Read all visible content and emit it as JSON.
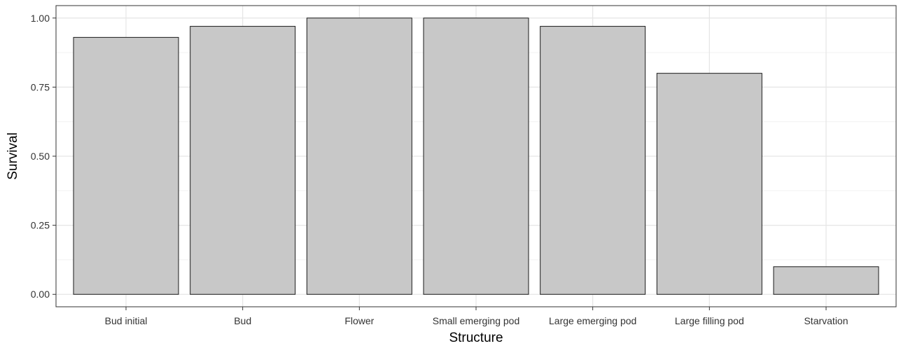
{
  "chart_data": {
    "type": "bar",
    "title": "",
    "xlabel": "Structure",
    "ylabel": "Survival",
    "categories": [
      "Bud initial",
      "Bud",
      "Flower",
      "Small emerging pod",
      "Large emerging pod",
      "Large filling pod",
      "Starvation"
    ],
    "values": [
      0.93,
      0.97,
      1.0,
      1.0,
      0.97,
      0.8,
      0.1
    ],
    "ylim": [
      -0.045,
      1.045
    ],
    "yticks": [
      0.0,
      0.25,
      0.5,
      0.75,
      1.0
    ],
    "ytick_labels": [
      "0.00",
      "0.25",
      "0.50",
      "0.75",
      "1.00"
    ],
    "grid": true,
    "legend": "none",
    "colors": {
      "bar_fill": "#c8c8c8",
      "bar_stroke": "#1a1a1a",
      "grid_major": "#e5e5e5",
      "grid_minor": "#f2f2f2",
      "panel_border": "#333333"
    }
  }
}
